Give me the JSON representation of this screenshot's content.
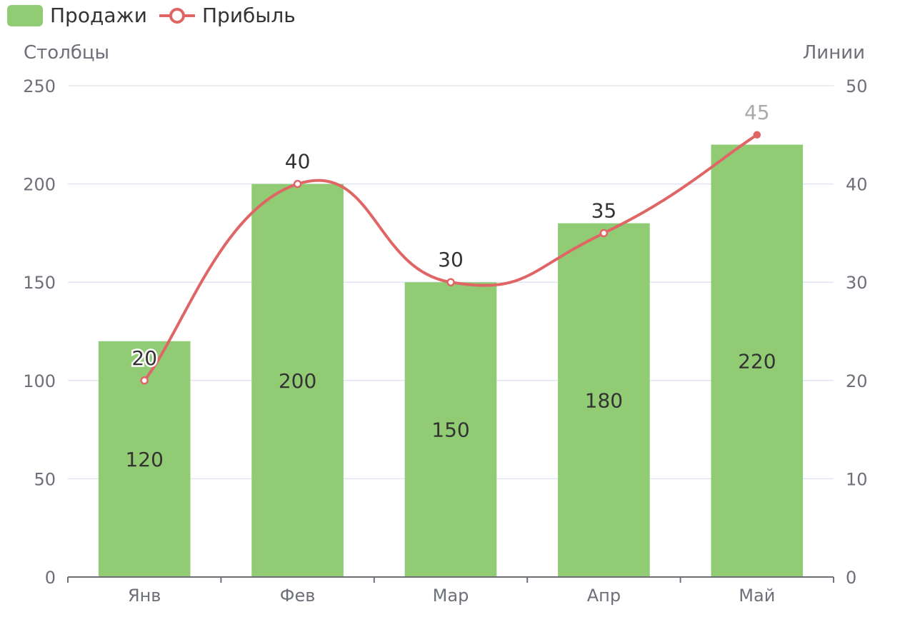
{
  "chart_data": {
    "type": "bar",
    "categories": [
      "Янв",
      "Фев",
      "Мар",
      "Апр",
      "Май"
    ],
    "series": [
      {
        "name": "Продажи",
        "type": "bar",
        "axis": "left",
        "values": [
          120,
          200,
          150,
          180,
          220
        ],
        "color": "#91cc75"
      },
      {
        "name": "Прибыль",
        "type": "line",
        "axis": "right",
        "smooth": true,
        "values": [
          20,
          40,
          30,
          35,
          45
        ],
        "color": "#e06666"
      }
    ],
    "y_left": {
      "label": "Столбцы",
      "range": [
        0,
        250
      ],
      "ticks": [
        0,
        50,
        100,
        150,
        200,
        250
      ]
    },
    "y_right": {
      "label": "Линии",
      "range": [
        0,
        50
      ],
      "ticks": [
        0,
        10,
        20,
        30,
        40,
        50
      ]
    },
    "grid": true,
    "legend_position": "top-left",
    "data_labels": true
  }
}
